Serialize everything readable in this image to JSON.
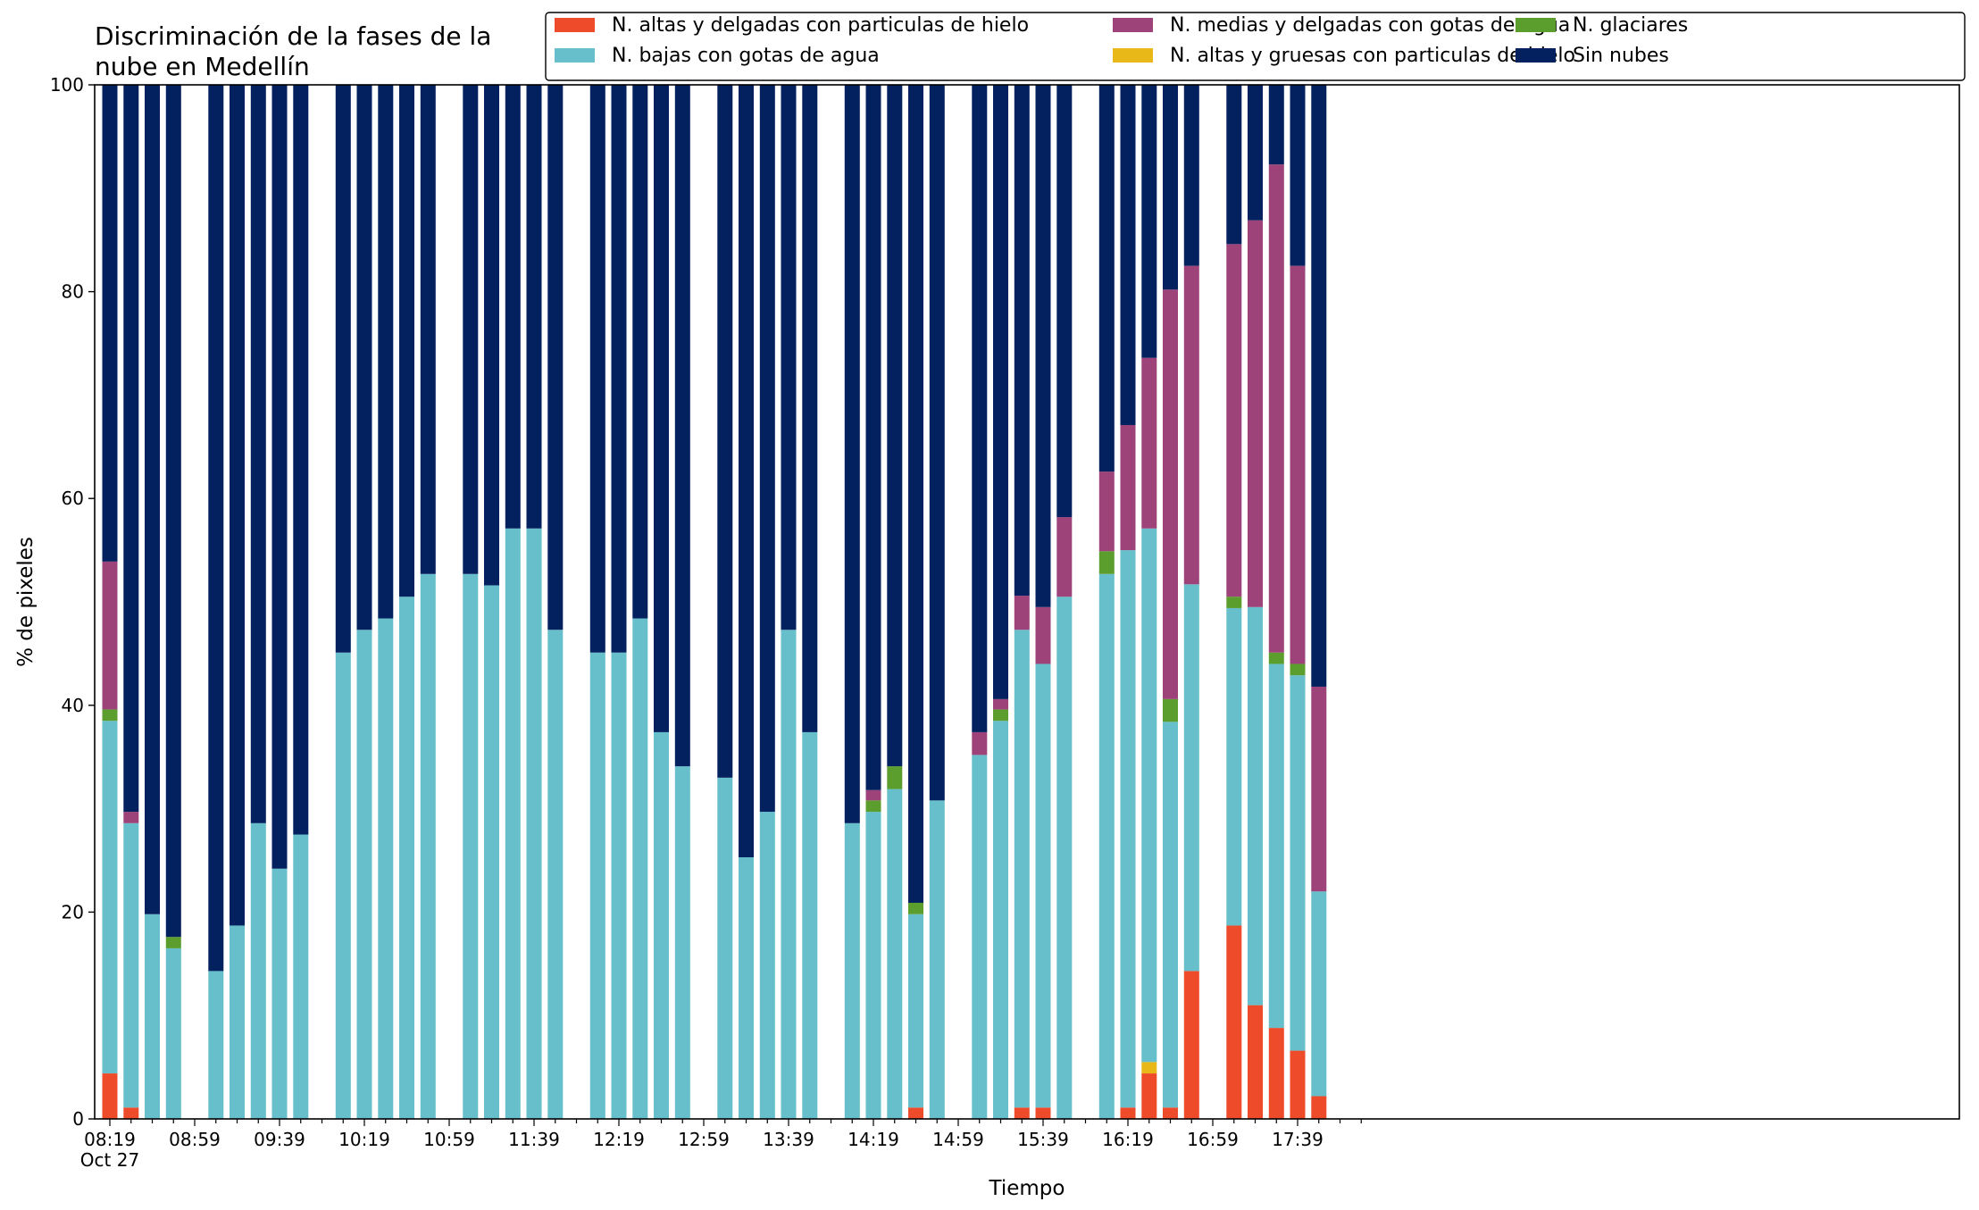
{
  "chart_data": {
    "type": "bar",
    "stacked": true,
    "title_lines": [
      "Discriminación de la fases de la",
      "nube en Medellín"
    ],
    "xlabel": "Tiempo",
    "ylabel": "% de pixeles",
    "ylim": [
      0,
      100
    ],
    "yticks": [
      "0",
      "20",
      "40",
      "60",
      "80",
      "100"
    ],
    "x_tick_labels": [
      "08:19",
      "08:59",
      "09:39",
      "10:19",
      "10:59",
      "11:39",
      "12:19",
      "12:59",
      "13:39",
      "14:19",
      "14:59",
      "15:39",
      "16:19",
      "16:59",
      "17:39"
    ],
    "x_date_label": "Oct 27",
    "x_start": "08:19",
    "x_end": "18:09",
    "bar_interval_minutes": 10,
    "grid": false,
    "legend_position": "top-right",
    "series": [
      {
        "name": "N. altas y delgadas con particulas de hielo",
        "color": "#ee4b2b"
      },
      {
        "name": "N. altas y gruesas con particulas de hielo",
        "color": "#e8b819"
      },
      {
        "name": "N. bajas con gotas de agua",
        "color": "#66bfca"
      },
      {
        "name": "N. glaciares",
        "color": "#5c9e2e"
      },
      {
        "name": "N. medias y delgadas con gotas de agua",
        "color": "#9e4379"
      },
      {
        "name": "Sin nubes",
        "color": "#03205f"
      }
    ],
    "legend_order": [
      0,
      2,
      4,
      1,
      3,
      5
    ],
    "bars": [
      {
        "time": "08:19",
        "values": [
          4.4,
          0,
          34.1,
          1.1,
          14.3,
          46.1
        ]
      },
      {
        "time": "08:29",
        "values": [
          1.1,
          0,
          27.5,
          0,
          1.1,
          70.3
        ]
      },
      {
        "time": "08:39",
        "values": [
          0,
          0,
          19.8,
          0,
          0,
          80.2
        ]
      },
      {
        "time": "08:49",
        "values": [
          0,
          0,
          16.5,
          1.1,
          0,
          82.4
        ]
      },
      {
        "time": "09:09",
        "values": [
          0,
          0,
          14.3,
          0,
          0,
          85.7
        ]
      },
      {
        "time": "09:19",
        "values": [
          0,
          0,
          18.7,
          0,
          0,
          81.3
        ]
      },
      {
        "time": "09:29",
        "values": [
          0,
          0,
          28.6,
          0,
          0,
          71.4
        ]
      },
      {
        "time": "09:39",
        "values": [
          0,
          0,
          24.2,
          0,
          0,
          75.8
        ]
      },
      {
        "time": "09:49",
        "values": [
          0,
          0,
          27.5,
          0,
          0,
          72.5
        ]
      },
      {
        "time": "10:09",
        "values": [
          0,
          0,
          45.1,
          0,
          0,
          54.9
        ]
      },
      {
        "time": "10:19",
        "values": [
          0,
          0,
          47.3,
          0,
          0,
          52.7
        ]
      },
      {
        "time": "10:29",
        "values": [
          0,
          0,
          48.4,
          0,
          0,
          51.6
        ]
      },
      {
        "time": "10:39",
        "values": [
          0,
          0,
          50.5,
          0,
          0,
          49.5
        ]
      },
      {
        "time": "10:49",
        "values": [
          0,
          0,
          52.7,
          0,
          0,
          47.3
        ]
      },
      {
        "time": "11:09",
        "values": [
          0,
          0,
          52.7,
          0,
          0,
          47.3
        ]
      },
      {
        "time": "11:19",
        "values": [
          0,
          0,
          51.6,
          0,
          0,
          48.4
        ]
      },
      {
        "time": "11:29",
        "values": [
          0,
          0,
          57.1,
          0,
          0,
          42.9
        ]
      },
      {
        "time": "11:39",
        "values": [
          0,
          0,
          57.1,
          0,
          0,
          42.9
        ]
      },
      {
        "time": "11:49",
        "values": [
          0,
          0,
          47.3,
          0,
          0,
          52.7
        ]
      },
      {
        "time": "12:09",
        "values": [
          0,
          0,
          45.1,
          0,
          0,
          54.9
        ]
      },
      {
        "time": "12:19",
        "values": [
          0,
          0,
          45.1,
          0,
          0,
          54.9
        ]
      },
      {
        "time": "12:29",
        "values": [
          0,
          0,
          48.4,
          0,
          0,
          51.6
        ]
      },
      {
        "time": "12:39",
        "values": [
          0,
          0,
          37.4,
          0,
          0,
          62.6
        ]
      },
      {
        "time": "12:49",
        "values": [
          0,
          0,
          34.1,
          0,
          0,
          65.9
        ]
      },
      {
        "time": "13:09",
        "values": [
          0,
          0,
          33.0,
          0,
          0,
          67.0
        ]
      },
      {
        "time": "13:19",
        "values": [
          0,
          0,
          25.3,
          0,
          0,
          74.7
        ]
      },
      {
        "time": "13:29",
        "values": [
          0,
          0,
          29.7,
          0,
          0,
          70.3
        ]
      },
      {
        "time": "13:39",
        "values": [
          0,
          0,
          47.3,
          0,
          0,
          52.7
        ]
      },
      {
        "time": "13:49",
        "values": [
          0,
          0,
          37.4,
          0,
          0,
          62.6
        ]
      },
      {
        "time": "14:09",
        "values": [
          0,
          0,
          28.6,
          0,
          0,
          71.4
        ]
      },
      {
        "time": "14:19",
        "values": [
          0,
          0,
          29.7,
          1.1,
          1.0,
          68.2
        ]
      },
      {
        "time": "14:29",
        "values": [
          0,
          0,
          31.9,
          2.2,
          0,
          65.9
        ]
      },
      {
        "time": "14:39",
        "values": [
          1.1,
          0,
          18.7,
          1.1,
          0,
          79.1
        ]
      },
      {
        "time": "14:49",
        "values": [
          0,
          0,
          30.8,
          0,
          0,
          69.2
        ]
      },
      {
        "time": "15:09",
        "values": [
          0,
          0,
          35.2,
          0,
          2.2,
          62.6
        ]
      },
      {
        "time": "15:19",
        "values": [
          0,
          0,
          38.5,
          1.1,
          1.0,
          59.4
        ]
      },
      {
        "time": "15:29",
        "values": [
          1.1,
          0,
          46.2,
          0,
          3.3,
          49.4
        ]
      },
      {
        "time": "15:39",
        "values": [
          1.1,
          0,
          42.9,
          0,
          5.5,
          50.5
        ]
      },
      {
        "time": "15:49",
        "values": [
          0,
          0,
          50.5,
          0,
          7.7,
          41.8
        ]
      },
      {
        "time": "16:09",
        "values": [
          0,
          0,
          52.7,
          2.2,
          7.7,
          37.4
        ]
      },
      {
        "time": "16:19",
        "values": [
          1.1,
          0,
          53.9,
          0,
          12.1,
          32.9
        ]
      },
      {
        "time": "16:29",
        "values": [
          4.4,
          1.1,
          51.6,
          0,
          16.5,
          26.4
        ]
      },
      {
        "time": "16:39",
        "values": [
          1.1,
          0,
          37.3,
          2.2,
          39.6,
          19.8
        ]
      },
      {
        "time": "16:49",
        "values": [
          14.3,
          0,
          37.4,
          0,
          30.8,
          17.5
        ]
      },
      {
        "time": "17:09",
        "values": [
          18.7,
          0,
          30.7,
          1.1,
          34.1,
          15.4
        ]
      },
      {
        "time": "17:19",
        "values": [
          11.0,
          0,
          38.5,
          0,
          37.4,
          13.1
        ]
      },
      {
        "time": "17:29",
        "values": [
          8.8,
          0,
          35.2,
          1.1,
          47.2,
          7.7
        ]
      },
      {
        "time": "17:39",
        "values": [
          6.6,
          0,
          36.3,
          1.1,
          38.5,
          17.5
        ]
      },
      {
        "time": "17:49",
        "values": [
          2.2,
          0,
          19.8,
          0,
          19.8,
          58.2
        ]
      }
    ]
  }
}
